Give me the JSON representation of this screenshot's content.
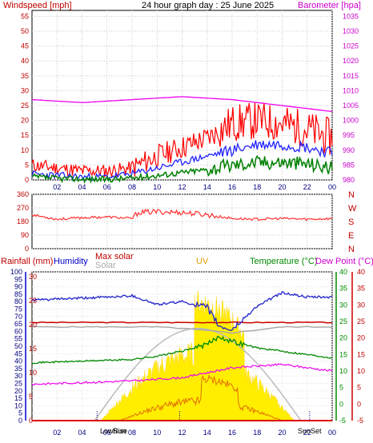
{
  "chart_data": [
    {
      "type": "line",
      "title": "24 hour graph day : 25 June 2025",
      "ylabel_left": "Windspeed [mph]",
      "ylabel_right": "Barometer [hpa]",
      "x_ticks": [
        "02",
        "04",
        "06",
        "08",
        "10",
        "12",
        "14",
        "16",
        "18",
        "20",
        "22",
        "00"
      ],
      "y_left_ticks": [
        "0",
        "5",
        "10",
        "15",
        "20",
        "25",
        "30",
        "35",
        "40",
        "45",
        "50",
        "55"
      ],
      "y_right_ticks": [
        "980",
        "985",
        "990",
        "995",
        "1000",
        "1005",
        "1010",
        "1015",
        "1020",
        "1025",
        "1030",
        "1035"
      ],
      "ylim_left": [
        0,
        57
      ],
      "ylim_right": [
        980,
        1037
      ],
      "grid": true,
      "series": [
        {
          "axis": "right",
          "hours": [
            0,
            4,
            8,
            12,
            16,
            20,
            22,
            24
          ],
          "values": [
            1007,
            1006,
            1007,
            1008,
            1007,
            1005,
            1004,
            1003
          ]
        },
        {
          "axis": "left",
          "hours": [
            0,
            2,
            4,
            6,
            8,
            10,
            12,
            14,
            16,
            18,
            20,
            22,
            24
          ],
          "values": [
            5,
            4,
            3,
            3,
            4,
            8,
            11,
            14,
            19,
            20,
            19,
            17,
            14
          ]
        },
        {
          "axis": "left",
          "hours": [
            0,
            2,
            4,
            6,
            8,
            10,
            12,
            14,
            16,
            18,
            20,
            22,
            24
          ],
          "values": [
            2,
            1.5,
            1,
            1,
            2,
            4,
            6,
            8,
            10,
            12,
            12,
            11,
            9
          ]
        },
        {
          "axis": "left",
          "hours": [
            0,
            2,
            4,
            6,
            8,
            10,
            12,
            14,
            16,
            18,
            20,
            22,
            24
          ],
          "values": [
            1,
            0.5,
            0.3,
            0.2,
            0.6,
            1.5,
            2.5,
            3.5,
            5,
            6,
            6,
            5.5,
            4
          ]
        }
      ]
    },
    {
      "type": "line",
      "y_ticks": [
        "360",
        "270",
        "180",
        "90",
        "0"
      ],
      "ylim": [
        0,
        360
      ],
      "compass_labels": [
        "N",
        "W",
        "S",
        "E",
        "N"
      ],
      "grid": true,
      "series": [
        {
          "hours": [
            0,
            1,
            2,
            4,
            6,
            8,
            8.5,
            10,
            12,
            14,
            16,
            18,
            20,
            22,
            24
          ],
          "values": [
            225,
            210,
            195,
            205,
            210,
            200,
            240,
            245,
            240,
            225,
            200,
            195,
            200,
            195,
            200
          ]
        }
      ]
    },
    {
      "type": "line",
      "labels": {
        "rainfall": "Rainfall (mm)",
        "humidity": "Humidity",
        "max_solar": "Max solar",
        "solar": "Solar",
        "uv": "UV",
        "temperature": "Temperature (°C)",
        "dew_point": "Dew Point (°C)"
      },
      "x_ticks": [
        "02",
        "04",
        "06",
        "08",
        "10",
        "12",
        "14",
        "16",
        "18",
        "20",
        "22",
        "00"
      ],
      "rain_ticks": [
        "0",
        "5",
        "10",
        "15",
        "20",
        "25",
        "30",
        "35",
        "40",
        "45",
        "50",
        "55",
        "60",
        "65",
        "70",
        "75",
        "80",
        "85",
        "90",
        "95",
        "100"
      ],
      "humidity_ticks": [
        "0",
        "5",
        "10",
        "15",
        "20",
        "25",
        "30"
      ],
      "temp_ticks": [
        "-5",
        "0",
        "5",
        "10",
        "15",
        "20",
        "25",
        "30",
        "35",
        "40"
      ],
      "temp_ticks_right": [
        "-5",
        "0",
        "5",
        "10",
        "15",
        "20",
        "25",
        "30",
        "35",
        "40"
      ],
      "ylim_rain": [
        0,
        100
      ],
      "ylim_temp": [
        -5,
        40
      ],
      "markers": {
        "low_sun": "LowSun",
        "rise": "Rise",
        "sun_set": "SunSet"
      },
      "grid": true,
      "series": [
        {
          "name": "Humidity",
          "hours": [
            0,
            3,
            6,
            8,
            10,
            12,
            14,
            15,
            16,
            18,
            20,
            22,
            24
          ],
          "values": [
            81,
            82,
            83,
            84,
            78,
            80,
            76,
            63,
            61,
            77,
            86,
            83,
            83
          ]
        },
        {
          "name": "Max solar",
          "hours": [
            0,
            6,
            12,
            18,
            24
          ],
          "values": [
            66,
            66,
            66,
            66,
            66
          ]
        },
        {
          "name": "Solar",
          "hours": [
            0,
            8,
            10,
            12,
            16,
            20,
            24
          ],
          "values": [
            63,
            63,
            63,
            62,
            59,
            63,
            63
          ]
        },
        {
          "name": "Temperature",
          "hours": [
            0,
            4,
            8,
            10,
            12,
            14,
            15,
            16,
            18,
            20,
            22,
            24
          ],
          "values": [
            12.5,
            13,
            13.5,
            14.5,
            16,
            18,
            20.5,
            19,
            17,
            16,
            15,
            14
          ]
        },
        {
          "name": "Dew Point",
          "hours": [
            0,
            4,
            8,
            10,
            12,
            14,
            16,
            18,
            20,
            22,
            24
          ],
          "values": [
            6,
            6.5,
            7,
            7.5,
            8,
            9.5,
            11,
            11.5,
            12,
            11,
            10
          ]
        },
        {
          "name": "Rainfall",
          "hours": [
            0,
            24
          ],
          "values": [
            0,
            0
          ]
        }
      ]
    }
  ]
}
